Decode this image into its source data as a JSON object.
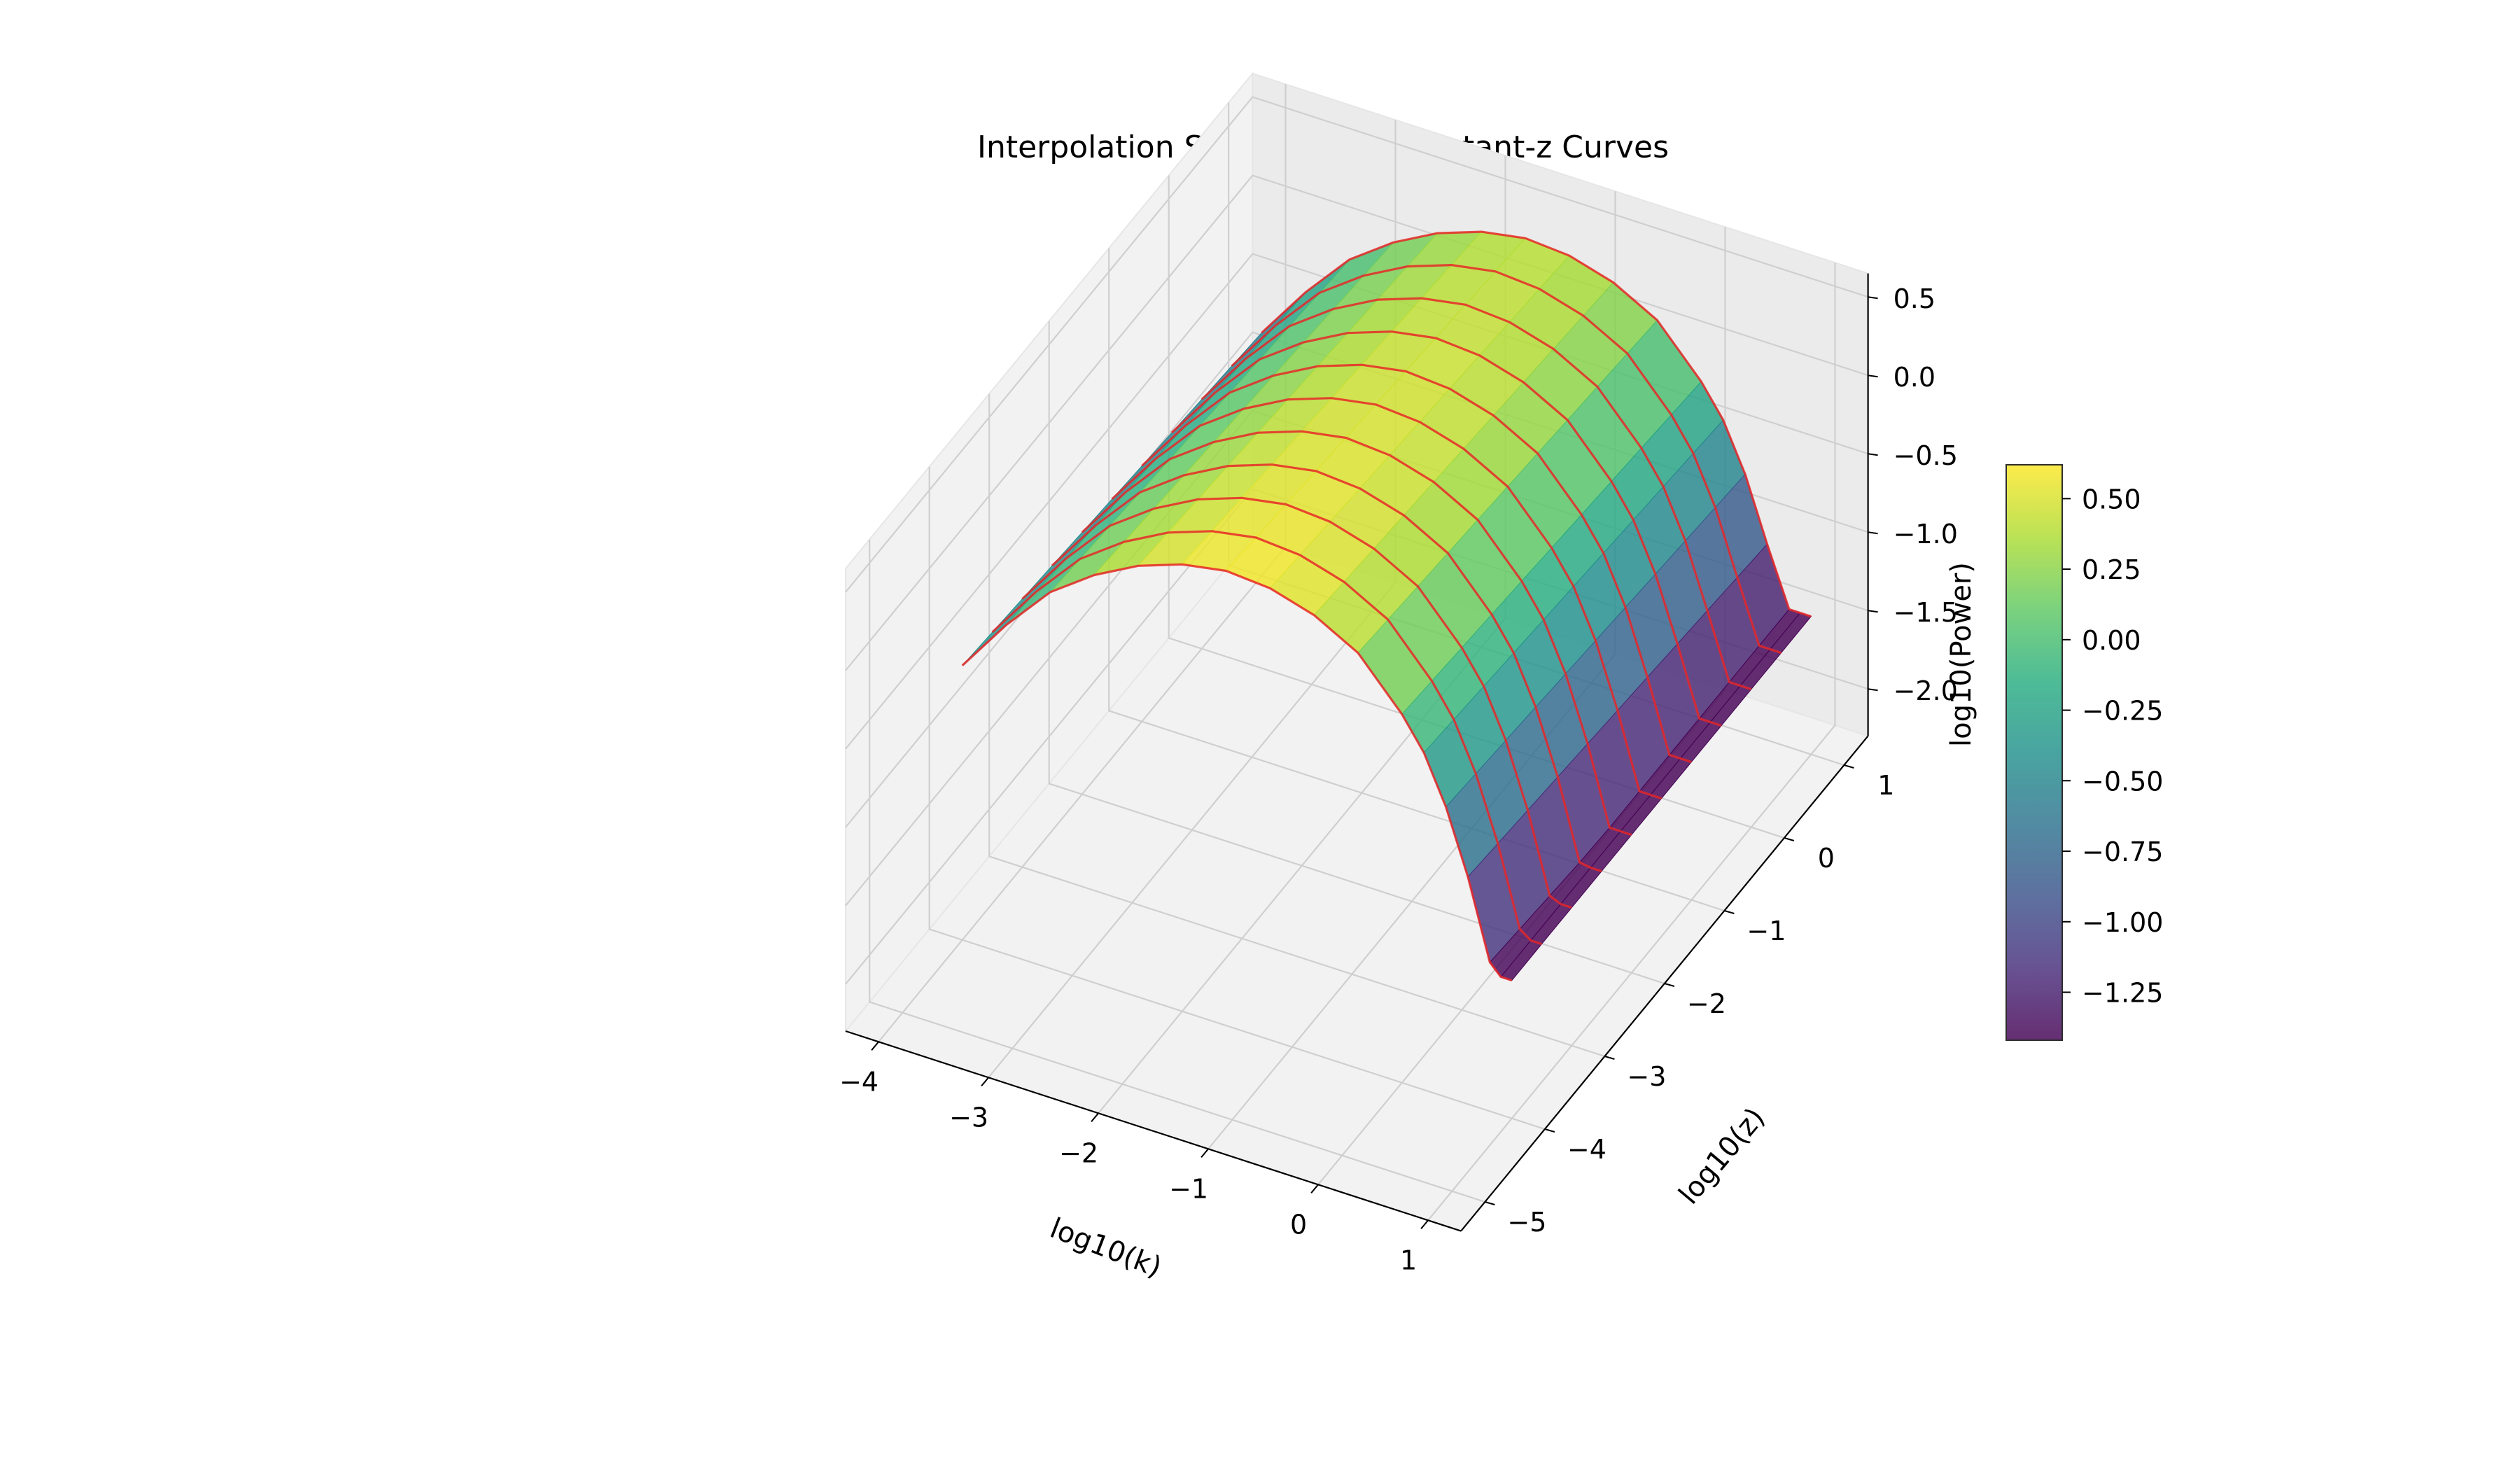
{
  "chart_data": {
    "type": "surface3d",
    "title": "Interpolation Surface with Constant-z Curves",
    "xlabel": "log10(k)",
    "ylabel": "log10(z)",
    "zlabel": "log10(Power)",
    "xlim": [
      -4.3,
      1.3
    ],
    "ylim": [
      -5.4,
      1.4
    ],
    "zlim": [
      -2.3,
      0.65
    ],
    "x_ticks": [
      -4,
      -3,
      -2,
      -1,
      0,
      1
    ],
    "y_ticks": [
      -5,
      -4,
      -3,
      -2,
      -1,
      0,
      1
    ],
    "z_ticks": [
      -2.0,
      -1.5,
      -1.0,
      -0.5,
      0.0,
      0.5
    ],
    "x_tick_labels": [
      "−4",
      "−3",
      "−2",
      "−1",
      "0",
      "1"
    ],
    "y_tick_labels": [
      "−5",
      "−4",
      "−3",
      "−2",
      "−1",
      "0",
      "1"
    ],
    "z_tick_labels": [
      "−2.0",
      "−1.5",
      "−1.0",
      "−0.5",
      "0.0",
      "0.5"
    ],
    "grid": true,
    "colormap": "viridis",
    "colorbar": {
      "min": -1.42,
      "max": 0.62,
      "ticks": [
        -1.25,
        -1.0,
        -0.75,
        -0.5,
        -0.25,
        0.0,
        0.25,
        0.5
      ],
      "tick_labels": [
        "−1.25",
        "−1.00",
        "−0.75",
        "−0.50",
        "−0.25",
        "0.00",
        "0.25",
        "0.50"
      ]
    },
    "surface": {
      "k": [
        -4,
        -3.6,
        -3.2,
        -2.8,
        -2.4,
        -2,
        -1.6,
        -1.2,
        -0.8,
        -0.4,
        0,
        0.2,
        0.4,
        0.6,
        0.8,
        0.9,
        1.0
      ],
      "z": [
        -4,
        -3.5,
        -3,
        -2.5,
        -2,
        -1.5,
        -1,
        -0.5,
        0,
        0.5,
        1
      ],
      "power_at_k": [
        -0.55,
        -0.2,
        0.1,
        0.3,
        0.45,
        0.55,
        0.6,
        0.58,
        0.5,
        0.35,
        0.05,
        -0.15,
        -0.45,
        -0.85,
        -1.35,
        -1.75,
        -2.2
      ],
      "drop_per_log_z": 0.04,
      "floor": -1.42
    },
    "constant_z_curves": {
      "color": "#e8292a",
      "z_values": [
        -4,
        -3.5,
        -3,
        -2.5,
        -2,
        -1.5,
        -1,
        -0.5,
        0,
        0.5,
        1
      ]
    }
  }
}
